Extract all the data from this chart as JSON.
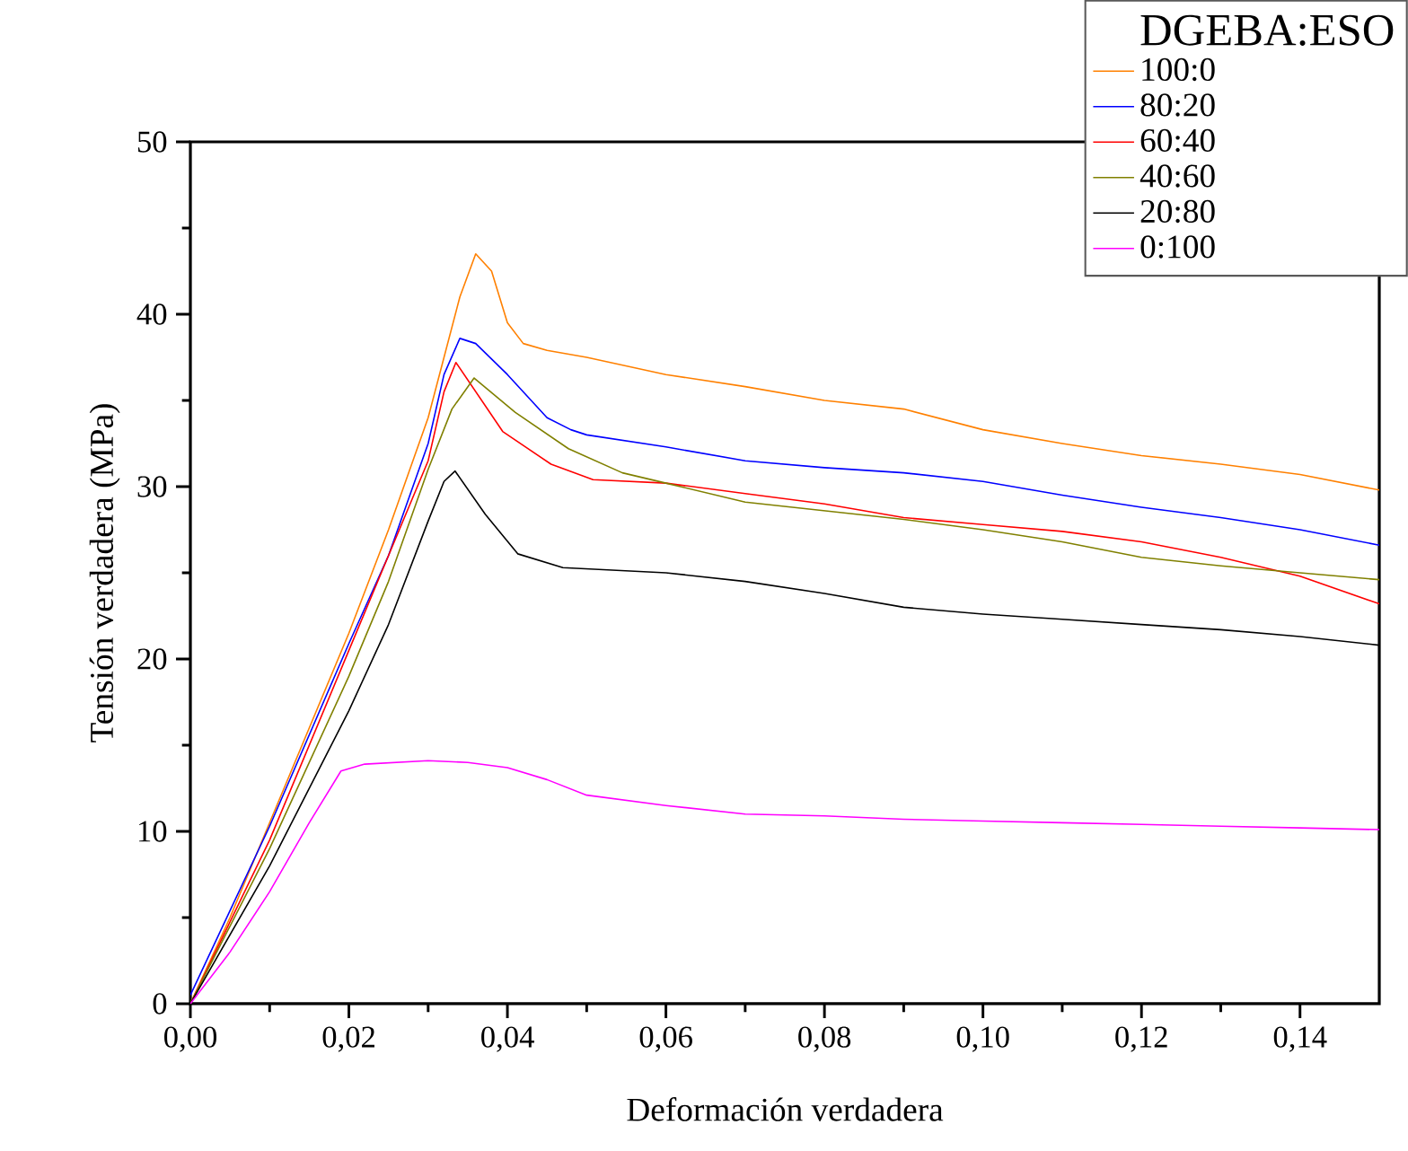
{
  "chart_data": {
    "type": "line",
    "xlabel": "Deformación verdadera",
    "ylabel": "Tensión verdadera (MPa)",
    "legend_title": "DGEBA:ESO",
    "xlim": [
      0,
      0.15
    ],
    "ylim": [
      0,
      50
    ],
    "xticks": [
      {
        "value": 0,
        "label": "0,00"
      },
      {
        "value": 0.02,
        "label": "0,02"
      },
      {
        "value": 0.04,
        "label": "0,04"
      },
      {
        "value": 0.06,
        "label": "0,06"
      },
      {
        "value": 0.08,
        "label": "0,08"
      },
      {
        "value": 0.1,
        "label": "0,10"
      },
      {
        "value": 0.12,
        "label": "0,12"
      },
      {
        "value": 0.14,
        "label": "0,14"
      }
    ],
    "yticks": [
      0,
      10,
      20,
      30,
      40,
      50
    ],
    "grid": false,
    "legend": "top right",
    "marker": "none",
    "line_style": "solid",
    "series": [
      {
        "name": "100:0",
        "color": "#ff8000",
        "x": [
          0,
          0.005,
          0.01,
          0.015,
          0.02,
          0.025,
          0.03,
          0.034,
          0.036,
          0.038,
          0.04,
          0.042,
          0.045,
          0.05,
          0.06,
          0.07,
          0.08,
          0.09,
          0.1,
          0.11,
          0.12,
          0.13,
          0.14,
          0.15
        ],
        "values": [
          0,
          5,
          10.5,
          16,
          21.5,
          27.5,
          34,
          41,
          43.5,
          42.5,
          39.5,
          38.3,
          37.9,
          37.5,
          36.5,
          35.8,
          35,
          34.5,
          33.3,
          32.5,
          31.8,
          31.3,
          30.7,
          29.8
        ]
      },
      {
        "name": "80:20",
        "color": "#0000ff",
        "x": [
          0,
          0.01,
          0.02,
          0.025,
          0.03,
          0.032,
          0.034,
          0.036,
          0.04,
          0.045,
          0.048,
          0.05,
          0.06,
          0.07,
          0.08,
          0.09,
          0.1,
          0.11,
          0.12,
          0.13,
          0.14,
          0.15
        ],
        "values": [
          0.5,
          10.3,
          20.9,
          26,
          32.5,
          36.5,
          38.6,
          38.3,
          36.5,
          34,
          33.3,
          33,
          32.3,
          31.5,
          31.1,
          30.8,
          30.3,
          29.5,
          28.8,
          28.2,
          27.5,
          26.6
        ]
      },
      {
        "name": "60:40",
        "color": "#ff0000",
        "x": [
          0,
          0.01,
          0.02,
          0.025,
          0.03,
          0.032,
          0.0335,
          0.0394,
          0.0455,
          0.0508,
          0.06,
          0.07,
          0.08,
          0.09,
          0.1,
          0.11,
          0.12,
          0.13,
          0.14,
          0.15
        ],
        "values": [
          0,
          9.5,
          20.5,
          26,
          31.5,
          35.5,
          37.2,
          33.2,
          31.3,
          30.4,
          30.2,
          29.6,
          29,
          28.2,
          27.8,
          27.4,
          26.8,
          25.9,
          24.8,
          23.2
        ]
      },
      {
        "name": "40:60",
        "color": "#808000",
        "x": [
          0,
          0.01,
          0.02,
          0.025,
          0.03,
          0.033,
          0.0358,
          0.041,
          0.0477,
          0.0545,
          0.06,
          0.07,
          0.08,
          0.09,
          0.1,
          0.11,
          0.12,
          0.13,
          0.14,
          0.15
        ],
        "values": [
          0,
          9,
          19,
          24.5,
          31,
          34.5,
          36.3,
          34.3,
          32.2,
          30.8,
          30.2,
          29.1,
          28.6,
          28.1,
          27.5,
          26.8,
          25.9,
          25.4,
          25,
          24.6
        ]
      },
      {
        "name": "20:80",
        "color": "#000000",
        "x": [
          0,
          0.01,
          0.02,
          0.025,
          0.03,
          0.032,
          0.0334,
          0.0372,
          0.0413,
          0.047,
          0.06,
          0.07,
          0.08,
          0.09,
          0.1,
          0.11,
          0.12,
          0.13,
          0.14,
          0.15
        ],
        "values": [
          0,
          8,
          17,
          22,
          28,
          30.3,
          30.9,
          28.4,
          26.1,
          25.3,
          25,
          24.5,
          23.8,
          23,
          22.6,
          22.3,
          22,
          21.7,
          21.3,
          20.8
        ]
      },
      {
        "name": "0:100",
        "color": "#ff00ff",
        "x": [
          0,
          0.005,
          0.01,
          0.015,
          0.019,
          0.022,
          0.03,
          0.035,
          0.04,
          0.045,
          0.05,
          0.06,
          0.07,
          0.08,
          0.09,
          0.1,
          0.11,
          0.12,
          0.13,
          0.14,
          0.15
        ],
        "values": [
          0,
          3,
          6.5,
          10.5,
          13.5,
          13.9,
          14.1,
          14,
          13.7,
          13,
          12.1,
          11.5,
          11,
          10.9,
          10.7,
          10.6,
          10.5,
          10.4,
          10.3,
          10.2,
          10.1
        ]
      }
    ]
  }
}
